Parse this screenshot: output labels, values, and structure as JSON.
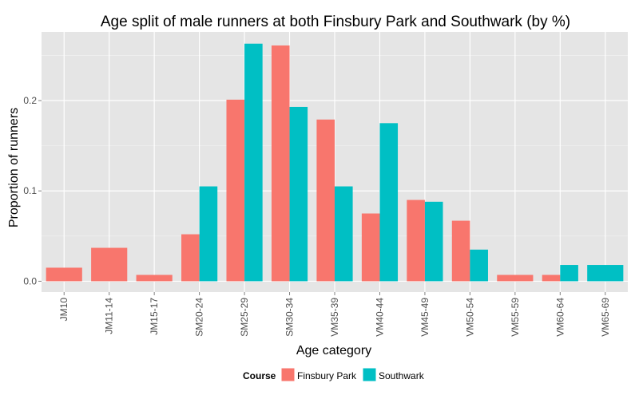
{
  "chart_data": {
    "type": "bar",
    "title": "Age split of male runners at both Finsbury Park and Southwark (by %)",
    "xlabel": "Age category",
    "ylabel": "Proportion of runners",
    "categories": [
      "JM10",
      "JM11-14",
      "JM15-17",
      "SM20-24",
      "SM25-29",
      "SM30-34",
      "VM35-39",
      "VM40-44",
      "VM45-49",
      "VM50-54",
      "VM55-59",
      "VM60-64",
      "VM65-69"
    ],
    "series": [
      {
        "name": "Finsbury Park",
        "color": "#F8766D",
        "values": [
          0.015,
          0.037,
          0.007,
          0.052,
          0.201,
          0.261,
          0.179,
          0.075,
          0.09,
          0.067,
          0.007,
          0.007,
          null
        ]
      },
      {
        "name": "Southwark",
        "color": "#00BFC4",
        "values": [
          null,
          null,
          null,
          0.105,
          0.263,
          0.193,
          0.105,
          0.175,
          0.088,
          0.035,
          null,
          0.018,
          0.018
        ]
      }
    ],
    "yticks": [
      0.0,
      0.1,
      0.2
    ],
    "ytick_labels": [
      "0.0",
      "0.1",
      "0.2"
    ],
    "ylim": [
      -0.012,
      0.276
    ],
    "grid": true,
    "legend_title": "Course",
    "legend_position": "bottom",
    "panel_background": "#E5E5E5",
    "grid_color": "#FFFFFF"
  }
}
